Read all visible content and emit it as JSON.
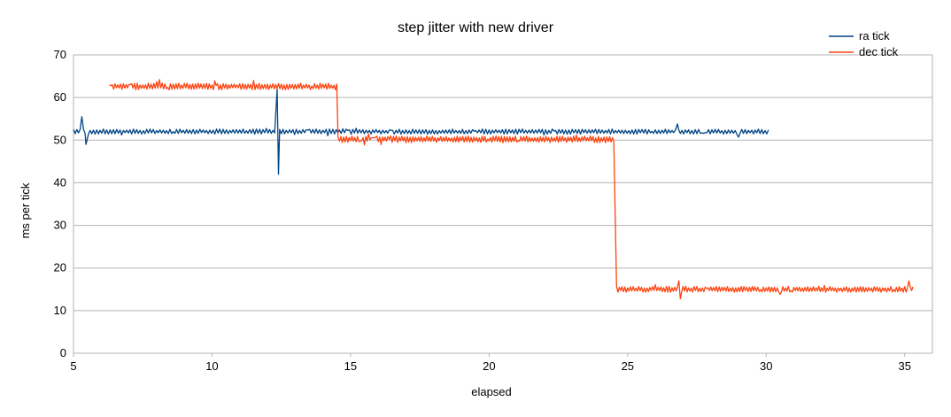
{
  "chart_data": {
    "type": "line",
    "title": "step jitter with new driver",
    "xlabel": "elapsed",
    "ylabel": "ms per tick",
    "xlim": [
      5,
      36
    ],
    "ylim": [
      0,
      70
    ],
    "xticks": [
      5,
      10,
      15,
      20,
      25,
      30,
      35
    ],
    "yticks": [
      0,
      10,
      20,
      30,
      40,
      50,
      60,
      70
    ],
    "grid": "horizontal",
    "legend_position": "top-right",
    "series": [
      {
        "name": "ra tick",
        "color": "#004586",
        "x_range": [
          5.0,
          30.1
        ],
        "baseline": 52,
        "jitter": 0.6,
        "spikes": [
          {
            "x": 5.3,
            "y": 55.5
          },
          {
            "x": 5.45,
            "y": 49
          },
          {
            "x": 12.35,
            "y": 62
          },
          {
            "x": 12.4,
            "y": 42
          },
          {
            "x": 26.8,
            "y": 53.8
          },
          {
            "x": 29.0,
            "y": 50.7
          }
        ]
      },
      {
        "name": "dec tick",
        "color": "#ff420e",
        "segments": [
          {
            "x_start": 6.3,
            "x_end": 14.5,
            "baseline": 62.6,
            "jitter": 0.8
          },
          {
            "x_start": 14.55,
            "x_end": 24.5,
            "baseline": 50.2,
            "jitter": 0.8
          },
          {
            "x_start": 24.6,
            "x_end": 35.3,
            "baseline": 15.0,
            "jitter": 0.7
          }
        ],
        "spikes": [
          {
            "x": 8.1,
            "y": 64.2
          },
          {
            "x": 11.5,
            "y": 64.0
          },
          {
            "x": 26.9,
            "y": 12.8
          },
          {
            "x": 26.85,
            "y": 17.0
          },
          {
            "x": 35.15,
            "y": 17.0
          },
          {
            "x": 30.5,
            "y": 13.8
          }
        ]
      }
    ]
  }
}
